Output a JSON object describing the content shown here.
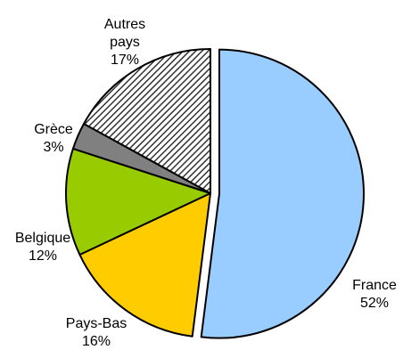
{
  "chart_data": {
    "type": "pie",
    "slices": [
      {
        "label": [
          "France"
        ],
        "percent_label": "52%",
        "value": 52,
        "color": "#99ccff",
        "pattern": "solid",
        "exploded": true
      },
      {
        "label": [
          "Pays-Bas"
        ],
        "percent_label": "16%",
        "value": 16,
        "color": "#ffcc00",
        "pattern": "solid",
        "exploded": false
      },
      {
        "label": [
          "Belgique"
        ],
        "percent_label": "12%",
        "value": 12,
        "color": "#99cc00",
        "pattern": "solid",
        "exploded": false
      },
      {
        "label": [
          "Grèce"
        ],
        "percent_label": "3%",
        "value": 3,
        "color": "#808080",
        "pattern": "solid",
        "exploded": false
      },
      {
        "label": [
          "Autres",
          "pays"
        ],
        "percent_label": "17%",
        "value": 17,
        "color": "#333333",
        "pattern": "diagonal-hatch",
        "exploded": false
      }
    ],
    "start": "12 o'clock",
    "direction": "clockwise",
    "legend": "none",
    "grid": false
  }
}
